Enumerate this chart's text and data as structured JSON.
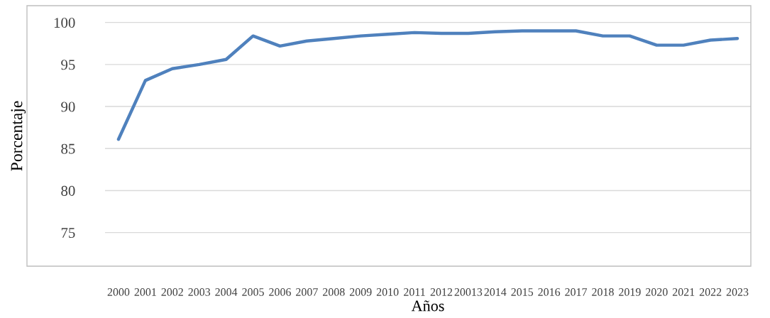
{
  "chart_data": {
    "type": "line",
    "xlabel": "Años",
    "ylabel": "Porcentaje",
    "categories": [
      "2000",
      "2001",
      "2002",
      "2003",
      "2004",
      "2005",
      "2006",
      "2007",
      "2008",
      "2009",
      "2010",
      "2011",
      "2012",
      "20013",
      "2014",
      "2015",
      "2016",
      "2017",
      "2018",
      "2019",
      "2020",
      "2021",
      "2022",
      "2023"
    ],
    "series": [
      {
        "color": "#4f81bd",
        "values": [
          86.1,
          93.1,
          94.5,
          95.0,
          95.6,
          98.4,
          97.2,
          97.8,
          98.1,
          98.4,
          98.6,
          98.8,
          98.7,
          98.7,
          98.9,
          99.0,
          99.0,
          99.0,
          98.4,
          98.4,
          97.3,
          97.3,
          97.9,
          98.1
        ]
      }
    ],
    "ylim": [
      71,
      102
    ],
    "yticks": [
      75,
      80,
      85,
      90,
      95,
      100
    ],
    "grid": "y",
    "legend": false,
    "marker": "none",
    "line_style": "solid"
  }
}
